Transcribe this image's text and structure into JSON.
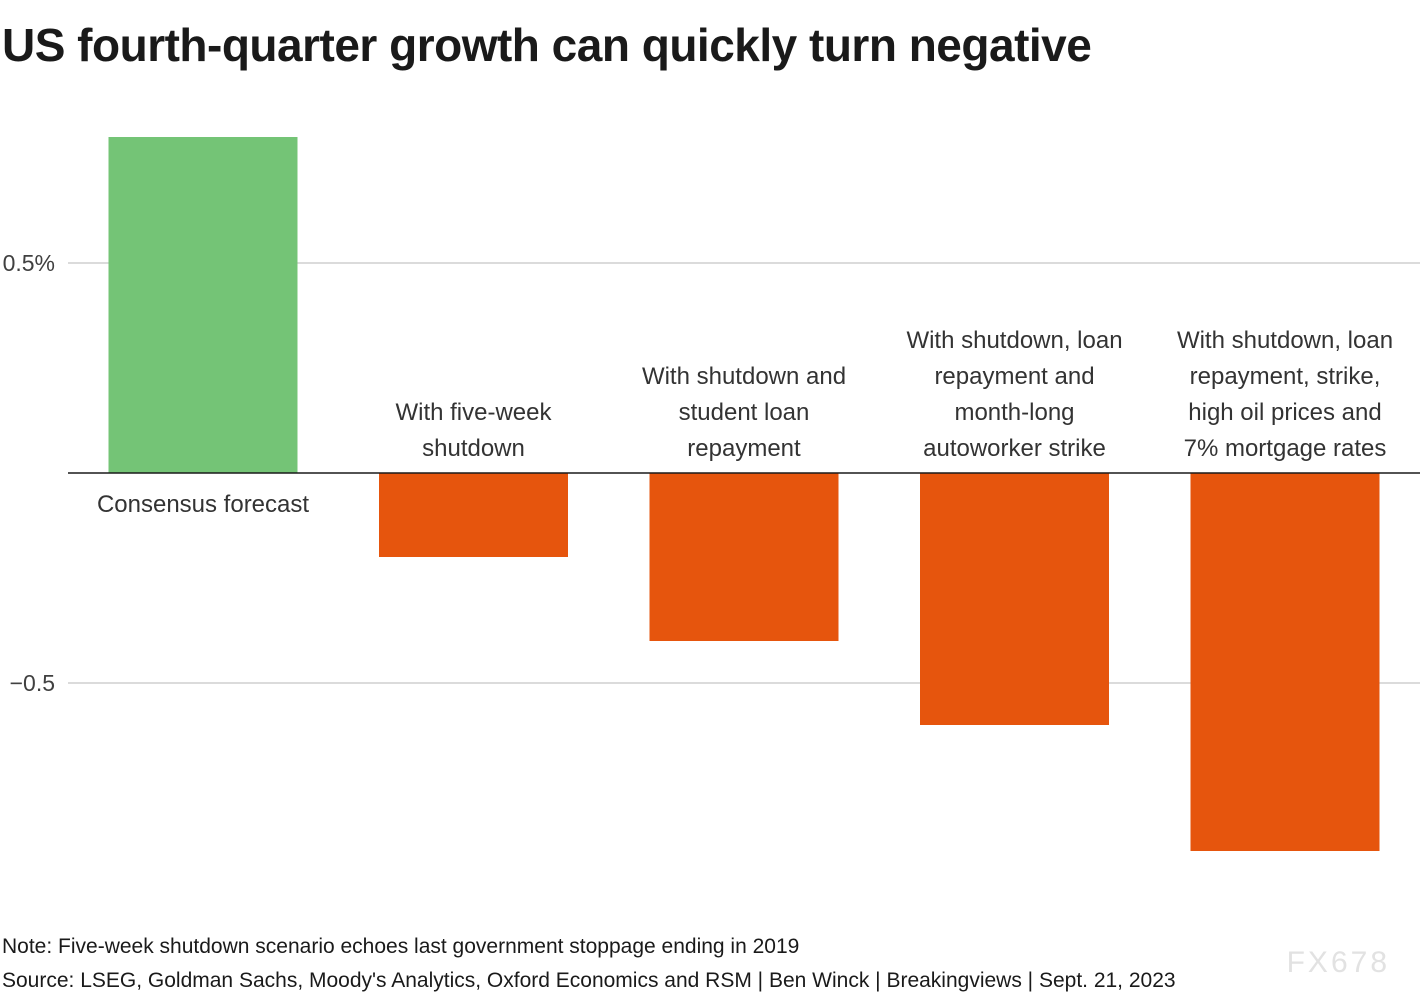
{
  "chart_data": {
    "type": "bar",
    "title": "US fourth-quarter growth can quickly turn negative",
    "xlabel": "",
    "ylabel": "",
    "categories": [
      [
        "Consensus forecast"
      ],
      [
        "With five-week",
        "shutdown"
      ],
      [
        "With shutdown and",
        "student loan",
        "repayment"
      ],
      [
        "With shutdown, loan",
        "repayment and",
        "month-long",
        "autoworker strike"
      ],
      [
        "With shutdown, loan",
        "repayment, strike,",
        "high oil prices and",
        "7% mortgage rates"
      ]
    ],
    "values": [
      0.8,
      -0.2,
      -0.4,
      -0.6,
      -0.9
    ],
    "colors": [
      "#74c476",
      "#e6550d",
      "#e6550d",
      "#e6550d",
      "#e6550d"
    ],
    "yticks": [
      0.5,
      -0.5
    ],
    "ytick_labels": [
      "0.5%",
      "−0.5"
    ],
    "ylim": [
      -1.0,
      0.9
    ],
    "grid": true,
    "legend": "none"
  },
  "footer": {
    "note": "Note: Five-week shutdown scenario echoes last government stoppage ending in 2019",
    "source": "Source: LSEG, Goldman Sachs, Moody's Analytics, Oxford Economics and RSM | Ben Winck | Breakingviews | Sept. 21, 2023"
  },
  "watermark": "FX678"
}
